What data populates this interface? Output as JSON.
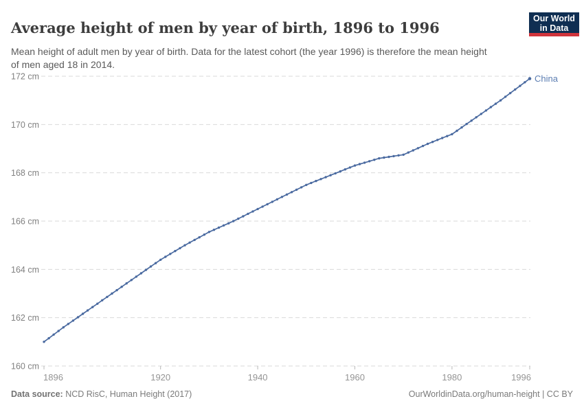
{
  "header": {
    "title": "Average height of men by year of birth, 1896 to 1996",
    "subtitle": "Mean height of adult men by year of birth. Data for the latest cohort (the year 1996) is therefore the mean height of men aged 18 in 2014.",
    "logo": {
      "line1": "Our World",
      "line2": "in Data"
    }
  },
  "footer": {
    "source_label": "Data source:",
    "source_text": " NCD RisC, Human Height (2017)",
    "link_text": "OurWorldinData.org/human-height | CC BY"
  },
  "colors": {
    "line": "#4a6aa0",
    "series_label": "#5b7db1",
    "gridline": "#dadada",
    "tick": "#b8b8b8",
    "logo_bg": "#0f2e52",
    "logo_stripe": "#d0343c"
  },
  "chart_data": {
    "type": "line",
    "title": "Average height of men by year of birth, 1896 to 1996",
    "xlabel": "",
    "ylabel": "",
    "xlim": [
      1896,
      1996
    ],
    "ylim": [
      160,
      172
    ],
    "x_ticks": [
      1896,
      1920,
      1940,
      1960,
      1980,
      1996
    ],
    "y_ticks": [
      160,
      162,
      164,
      166,
      168,
      170,
      172
    ],
    "y_tick_suffix": " cm",
    "grid": "horizontal-dashed",
    "legend_position": "end-of-line-label",
    "series": [
      {
        "name": "China",
        "color": "#4a6aa0",
        "x": [
          1896,
          1897,
          1898,
          1899,
          1900,
          1901,
          1902,
          1903,
          1904,
          1905,
          1906,
          1907,
          1908,
          1909,
          1910,
          1911,
          1912,
          1913,
          1914,
          1915,
          1916,
          1917,
          1918,
          1919,
          1920,
          1921,
          1922,
          1923,
          1924,
          1925,
          1926,
          1927,
          1928,
          1929,
          1930,
          1931,
          1932,
          1933,
          1934,
          1935,
          1936,
          1937,
          1938,
          1939,
          1940,
          1941,
          1942,
          1943,
          1944,
          1945,
          1946,
          1947,
          1948,
          1949,
          1950,
          1951,
          1952,
          1953,
          1954,
          1955,
          1956,
          1957,
          1958,
          1959,
          1960,
          1961,
          1962,
          1963,
          1964,
          1965,
          1966,
          1967,
          1968,
          1969,
          1970,
          1971,
          1972,
          1973,
          1974,
          1975,
          1976,
          1977,
          1978,
          1979,
          1980,
          1981,
          1982,
          1983,
          1984,
          1985,
          1986,
          1987,
          1988,
          1989,
          1990,
          1991,
          1992,
          1993,
          1994,
          1995,
          1996
        ],
        "values": [
          161.0,
          161.15,
          161.3,
          161.45,
          161.6,
          161.74,
          161.88,
          162.02,
          162.16,
          162.3,
          162.44,
          162.58,
          162.72,
          162.86,
          163.0,
          163.14,
          163.28,
          163.42,
          163.56,
          163.7,
          163.84,
          163.98,
          164.12,
          164.26,
          164.4,
          164.52,
          164.64,
          164.76,
          164.88,
          165.0,
          165.11,
          165.22,
          165.33,
          165.44,
          165.55,
          165.64,
          165.73,
          165.82,
          165.91,
          166.0,
          166.1,
          166.2,
          166.3,
          166.4,
          166.5,
          166.6,
          166.7,
          166.8,
          166.9,
          167.0,
          167.1,
          167.2,
          167.3,
          167.4,
          167.5,
          167.58,
          167.66,
          167.74,
          167.82,
          167.9,
          167.98,
          168.06,
          168.14,
          168.22,
          168.3,
          168.36,
          168.42,
          168.48,
          168.54,
          168.6,
          168.63,
          168.66,
          168.69,
          168.72,
          168.75,
          168.84,
          168.93,
          169.02,
          169.11,
          169.2,
          169.28,
          169.36,
          169.44,
          169.52,
          169.6,
          169.74,
          169.88,
          170.02,
          170.16,
          170.3,
          170.44,
          170.58,
          170.72,
          170.86,
          171.0,
          171.15,
          171.3,
          171.45,
          171.6,
          171.75,
          171.9
        ]
      }
    ]
  }
}
